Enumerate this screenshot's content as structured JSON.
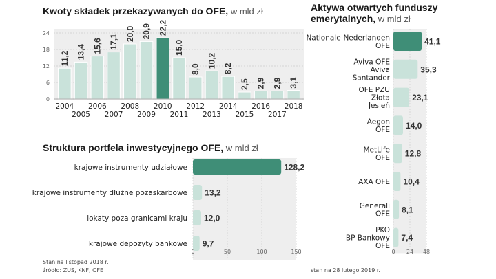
{
  "colors": {
    "bar": "#c9e2da",
    "highlight": "#3f8e77",
    "panel": "#eeeeee",
    "grid": "#cccccc",
    "text": "#222222"
  },
  "notes": {
    "source_line1": "Stan na listopad 2018 r.",
    "source_line2": "źródło: ZUS, KNF, OFE",
    "date_right": "stan na 28 lutego 2019 r."
  },
  "chart_data": [
    {
      "id": "contributions",
      "type": "bar",
      "title": "Kwoty składek przekazywanych do OFE,",
      "unit": " w mld zł",
      "categories": [
        "2004",
        "2005",
        "2006",
        "2007",
        "2008",
        "2009",
        "2010",
        "2011",
        "2012",
        "2013",
        "2014",
        "2015",
        "2016",
        "2017",
        "2018"
      ],
      "values": [
        11.2,
        13.4,
        15.6,
        17.1,
        20.0,
        20.9,
        22.2,
        15.0,
        8.0,
        10.2,
        8.2,
        2.5,
        2.9,
        2.9,
        3.1
      ],
      "value_labels": [
        "11,2",
        "13,4",
        "15,6",
        "17,1",
        "20,0",
        "20,9",
        "22,2",
        "15,0",
        "8,0",
        "10,2",
        "8,2",
        "2,5",
        "2,9",
        "2,9",
        "3,1"
      ],
      "highlight": "2010",
      "y_ticks": [
        "24",
        "18",
        "12",
        "6",
        "0"
      ],
      "ylim": [
        0,
        24
      ],
      "grid": true
    },
    {
      "id": "portfolio",
      "type": "bar",
      "orientation": "horizontal",
      "title": "Struktura portfela inwestycyjnego OFE,",
      "unit": " w mld zł",
      "categories": [
        "krajowe instrumenty udziałowe",
        "krajowe instrumenty dłużne pozaskarbowe",
        "lokaty poza granicami kraju",
        "krajowe depozyty bankowe"
      ],
      "values": [
        128.2,
        13.2,
        12.0,
        9.7
      ],
      "value_labels": [
        "128,2",
        "13,2",
        "12,0",
        "9,7"
      ],
      "highlight": "krajowe instrumenty udziałowe",
      "x_ticks": [
        "0",
        "50",
        "100",
        "150"
      ],
      "xlim": [
        0,
        150
      ]
    },
    {
      "id": "assets",
      "type": "bar",
      "orientation": "horizontal",
      "title_line1": "Aktywa otwartych funduszy",
      "title_line2": "emerytalnych,",
      "unit": " w mld zł",
      "categories": [
        [
          "Nationale-Nederlanden",
          "OFE"
        ],
        [
          "Aviva OFE",
          "Aviva",
          "Santander"
        ],
        [
          "OFE PZU",
          "Złota",
          "Jesień"
        ],
        [
          "Aegon",
          "OFE"
        ],
        [
          "MetLife",
          "OFE"
        ],
        [
          "AXA OFE"
        ],
        [
          "Generali",
          "OFE"
        ],
        [
          "PKO",
          "BP Bankowy",
          "OFE"
        ]
      ],
      "values": [
        41.1,
        35.3,
        23.1,
        14.0,
        12.8,
        10.4,
        8.1,
        7.4
      ],
      "value_labels": [
        "41,1",
        "35,3",
        "23,1",
        "14,0",
        "12,8",
        "10,4",
        "8,1",
        "7,4"
      ],
      "highlight": 0,
      "x_ticks": [
        "0",
        "24",
        "48"
      ],
      "xlim": [
        0,
        48
      ]
    }
  ]
}
